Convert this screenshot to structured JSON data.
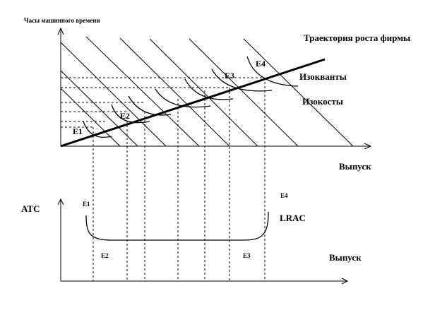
{
  "top_chart": {
    "y_axis_label": "Часы машинного времени",
    "x_axis_label": "Выпуск",
    "growth_path_label": "Траектория роста фирмы",
    "isoquants_label": "Изокванты",
    "isocosts_label": "Изокосты",
    "points": [
      "E1",
      "E2",
      "E3",
      "E4"
    ]
  },
  "bottom_chart": {
    "y_axis_label": "ATC",
    "x_axis_label": "Выпуск",
    "curve_label": "LRAC",
    "labels": {
      "e1": "E1",
      "e2": "E2",
      "e3": "E3",
      "e4": "E4"
    }
  }
}
